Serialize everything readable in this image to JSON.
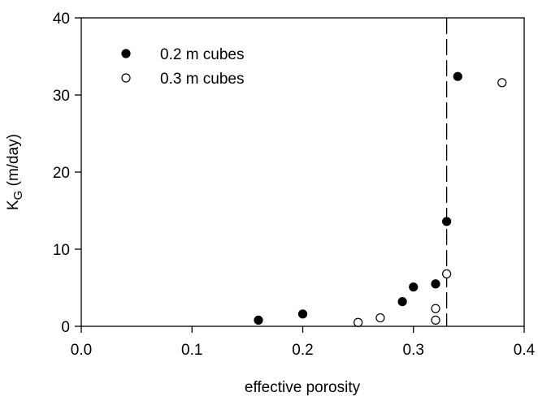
{
  "chart_data": {
    "type": "scatter",
    "xlabel": "effective porosity",
    "ylabel": "K",
    "ylabel_subscript": "G",
    "ylabel_suffix": " (m/day)",
    "xlim": [
      0.0,
      0.4
    ],
    "ylim": [
      0,
      40
    ],
    "x_ticks": [
      "0.0",
      "0.1",
      "0.2",
      "0.3",
      "0.4"
    ],
    "y_ticks": [
      "0",
      "10",
      "20",
      "30",
      "40"
    ],
    "grid": false,
    "legend_position": "top-left",
    "reference_line": {
      "orientation": "vertical",
      "x": 0.33,
      "style": "dashed"
    },
    "series": [
      {
        "name": "0.2 m cubes",
        "marker": "filled-circle",
        "color": "#000000",
        "points": [
          {
            "x": 0.16,
            "y": 0.8
          },
          {
            "x": 0.2,
            "y": 1.6
          },
          {
            "x": 0.29,
            "y": 3.2
          },
          {
            "x": 0.3,
            "y": 5.1
          },
          {
            "x": 0.32,
            "y": 5.5
          },
          {
            "x": 0.33,
            "y": 13.6
          },
          {
            "x": 0.34,
            "y": 32.4
          }
        ]
      },
      {
        "name": "0.3 m cubes",
        "marker": "open-circle",
        "color": "#000000",
        "points": [
          {
            "x": 0.25,
            "y": 0.5
          },
          {
            "x": 0.27,
            "y": 1.1
          },
          {
            "x": 0.32,
            "y": 0.8
          },
          {
            "x": 0.32,
            "y": 2.3
          },
          {
            "x": 0.33,
            "y": 6.8
          },
          {
            "x": 0.38,
            "y": 31.6
          }
        ]
      }
    ]
  }
}
